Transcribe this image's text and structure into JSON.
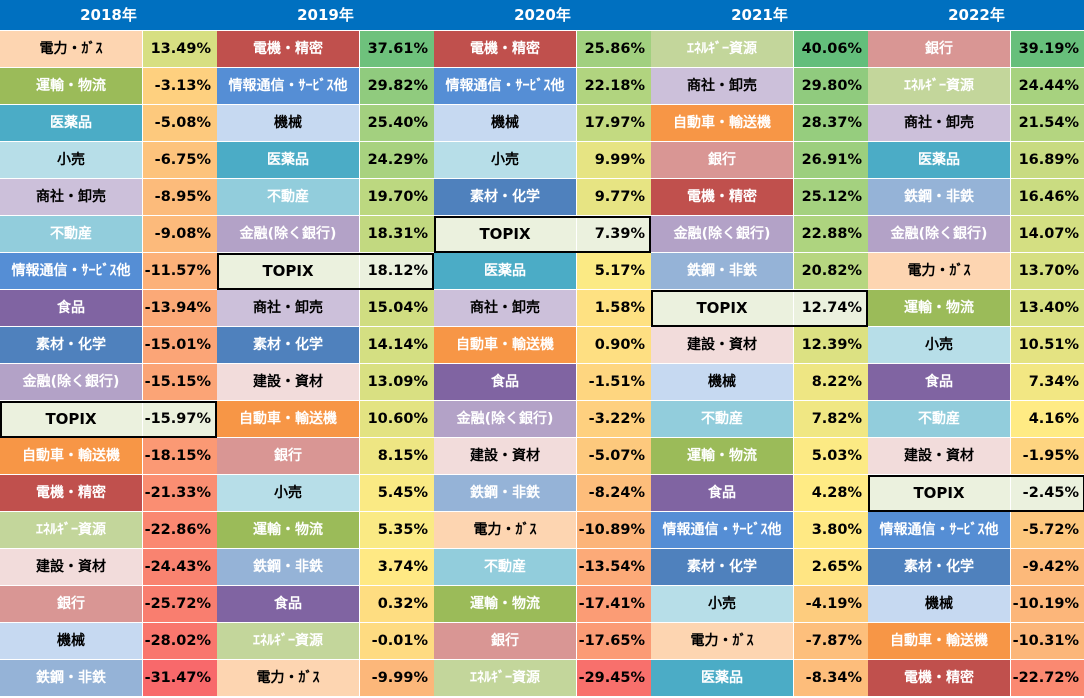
{
  "chart_data": {
    "type": "table",
    "title": "",
    "years": [
      {
        "year": "2018年",
        "rows": [
          {
            "name": "電力・ｶﾞｽ",
            "value": 13.49,
            "label": "13.49%"
          },
          {
            "name": "運輸・物流",
            "value": -3.13,
            "label": "-3.13%"
          },
          {
            "name": "医薬品",
            "value": -5.08,
            "label": "-5.08%"
          },
          {
            "name": "小売",
            "value": -6.75,
            "label": "-6.75%"
          },
          {
            "name": "商社・卸売",
            "value": -8.95,
            "label": "-8.95%"
          },
          {
            "name": "不動産",
            "value": -9.08,
            "label": "-9.08%"
          },
          {
            "name": "情報通信・ｻｰﾋﾞｽ他",
            "value": -11.57,
            "label": "-11.57%"
          },
          {
            "name": "食品",
            "value": -13.94,
            "label": "-13.94%"
          },
          {
            "name": "素材・化学",
            "value": -15.01,
            "label": "-15.01%"
          },
          {
            "name": "金融(除く銀行)",
            "value": -15.15,
            "label": "-15.15%"
          },
          {
            "name": "TOPIX",
            "value": -15.97,
            "label": "-15.97%"
          },
          {
            "name": "自動車・輸送機",
            "value": -18.15,
            "label": "-18.15%"
          },
          {
            "name": "電機・精密",
            "value": -21.33,
            "label": "-21.33%"
          },
          {
            "name": "ｴﾈﾙｷﾞｰ資源",
            "value": -22.86,
            "label": "-22.86%"
          },
          {
            "name": "建設・資材",
            "value": -24.43,
            "label": "-24.43%"
          },
          {
            "name": "銀行",
            "value": -25.72,
            "label": "-25.72%"
          },
          {
            "name": "機械",
            "value": -28.02,
            "label": "-28.02%"
          },
          {
            "name": "鉄鋼・非鉄",
            "value": -31.47,
            "label": "-31.47%"
          }
        ]
      },
      {
        "year": "2019年",
        "rows": [
          {
            "name": "電機・精密",
            "value": 37.61,
            "label": "37.61%"
          },
          {
            "name": "情報通信・ｻｰﾋﾞｽ他",
            "value": 29.82,
            "label": "29.82%"
          },
          {
            "name": "機械",
            "value": 25.4,
            "label": "25.40%"
          },
          {
            "name": "医薬品",
            "value": 24.29,
            "label": "24.29%"
          },
          {
            "name": "不動産",
            "value": 19.7,
            "label": "19.70%"
          },
          {
            "name": "金融(除く銀行)",
            "value": 18.31,
            "label": "18.31%"
          },
          {
            "name": "TOPIX",
            "value": 18.12,
            "label": "18.12%"
          },
          {
            "name": "商社・卸売",
            "value": 15.04,
            "label": "15.04%"
          },
          {
            "name": "素材・化学",
            "value": 14.14,
            "label": "14.14%"
          },
          {
            "name": "建設・資材",
            "value": 13.09,
            "label": "13.09%"
          },
          {
            "name": "自動車・輸送機",
            "value": 10.6,
            "label": "10.60%"
          },
          {
            "name": "銀行",
            "value": 8.15,
            "label": "8.15%"
          },
          {
            "name": "小売",
            "value": 5.45,
            "label": "5.45%"
          },
          {
            "name": "運輸・物流",
            "value": 5.35,
            "label": "5.35%"
          },
          {
            "name": "鉄鋼・非鉄",
            "value": 3.74,
            "label": "3.74%"
          },
          {
            "name": "食品",
            "value": 0.32,
            "label": "0.32%"
          },
          {
            "name": "ｴﾈﾙｷﾞｰ資源",
            "value": -0.01,
            "label": "-0.01%"
          },
          {
            "name": "電力・ｶﾞｽ",
            "value": -9.99,
            "label": "-9.99%"
          }
        ]
      },
      {
        "year": "2020年",
        "rows": [
          {
            "name": "電機・精密",
            "value": 25.86,
            "label": "25.86%"
          },
          {
            "name": "情報通信・ｻｰﾋﾞｽ他",
            "value": 22.18,
            "label": "22.18%"
          },
          {
            "name": "機械",
            "value": 17.97,
            "label": "17.97%"
          },
          {
            "name": "小売",
            "value": 9.99,
            "label": "9.99%"
          },
          {
            "name": "素材・化学",
            "value": 9.77,
            "label": "9.77%"
          },
          {
            "name": "TOPIX",
            "value": 7.39,
            "label": "7.39%"
          },
          {
            "name": "医薬品",
            "value": 5.17,
            "label": "5.17%"
          },
          {
            "name": "商社・卸売",
            "value": 1.58,
            "label": "1.58%"
          },
          {
            "name": "自動車・輸送機",
            "value": 0.9,
            "label": "0.90%"
          },
          {
            "name": "食品",
            "value": -1.51,
            "label": "-1.51%"
          },
          {
            "name": "金融(除く銀行)",
            "value": -3.22,
            "label": "-3.22%"
          },
          {
            "name": "建設・資材",
            "value": -5.07,
            "label": "-5.07%"
          },
          {
            "name": "鉄鋼・非鉄",
            "value": -8.24,
            "label": "-8.24%"
          },
          {
            "name": "電力・ｶﾞｽ",
            "value": -10.89,
            "label": "-10.89%"
          },
          {
            "name": "不動産",
            "value": -13.54,
            "label": "-13.54%"
          },
          {
            "name": "運輸・物流",
            "value": -17.41,
            "label": "-17.41%"
          },
          {
            "name": "銀行",
            "value": -17.65,
            "label": "-17.65%"
          },
          {
            "name": "ｴﾈﾙｷﾞｰ資源",
            "value": -29.45,
            "label": "-29.45%"
          }
        ]
      },
      {
        "year": "2021年",
        "rows": [
          {
            "name": "ｴﾈﾙｷﾞｰ資源",
            "value": 40.06,
            "label": "40.06%"
          },
          {
            "name": "商社・卸売",
            "value": 29.8,
            "label": "29.80%"
          },
          {
            "name": "自動車・輸送機",
            "value": 28.37,
            "label": "28.37%"
          },
          {
            "name": "銀行",
            "value": 26.91,
            "label": "26.91%"
          },
          {
            "name": "電機・精密",
            "value": 25.12,
            "label": "25.12%"
          },
          {
            "name": "金融(除く銀行)",
            "value": 22.88,
            "label": "22.88%"
          },
          {
            "name": "鉄鋼・非鉄",
            "value": 20.82,
            "label": "20.82%"
          },
          {
            "name": "TOPIX",
            "value": 12.74,
            "label": "12.74%"
          },
          {
            "name": "建設・資材",
            "value": 12.39,
            "label": "12.39%"
          },
          {
            "name": "機械",
            "value": 8.22,
            "label": "8.22%"
          },
          {
            "name": "不動産",
            "value": 7.82,
            "label": "7.82%"
          },
          {
            "name": "運輸・物流",
            "value": 5.03,
            "label": "5.03%"
          },
          {
            "name": "食品",
            "value": 4.28,
            "label": "4.28%"
          },
          {
            "name": "情報通信・ｻｰﾋﾞｽ他",
            "value": 3.8,
            "label": "3.80%"
          },
          {
            "name": "素材・化学",
            "value": 2.65,
            "label": "2.65%"
          },
          {
            "name": "小売",
            "value": -4.19,
            "label": "-4.19%"
          },
          {
            "name": "電力・ｶﾞｽ",
            "value": -7.87,
            "label": "-7.87%"
          },
          {
            "name": "医薬品",
            "value": -8.34,
            "label": "-8.34%"
          }
        ]
      },
      {
        "year": "2022年",
        "rows": [
          {
            "name": "銀行",
            "value": 39.19,
            "label": "39.19%"
          },
          {
            "name": "ｴﾈﾙｷﾞｰ資源",
            "value": 24.44,
            "label": "24.44%"
          },
          {
            "name": "商社・卸売",
            "value": 21.54,
            "label": "21.54%"
          },
          {
            "name": "医薬品",
            "value": 16.89,
            "label": "16.89%"
          },
          {
            "name": "鉄鋼・非鉄",
            "value": 16.46,
            "label": "16.46%"
          },
          {
            "name": "金融(除く銀行)",
            "value": 14.07,
            "label": "14.07%"
          },
          {
            "name": "電力・ｶﾞｽ",
            "value": 13.7,
            "label": "13.70%"
          },
          {
            "name": "運輸・物流",
            "value": 13.4,
            "label": "13.40%"
          },
          {
            "name": "小売",
            "value": 10.51,
            "label": "10.51%"
          },
          {
            "name": "食品",
            "value": 7.34,
            "label": "7.34%"
          },
          {
            "name": "不動産",
            "value": 4.16,
            "label": "4.16%"
          },
          {
            "name": "建設・資材",
            "value": -1.95,
            "label": "-1.95%"
          },
          {
            "name": "TOPIX",
            "value": -2.45,
            "label": "-2.45%"
          },
          {
            "name": "情報通信・ｻｰﾋﾞｽ他",
            "value": -5.72,
            "label": "-5.72%"
          },
          {
            "name": "素材・化学",
            "value": -9.42,
            "label": "-9.42%"
          },
          {
            "name": "機械",
            "value": -10.19,
            "label": "-10.19%"
          },
          {
            "name": "自動車・輸送機",
            "value": -10.31,
            "label": "-10.31%"
          },
          {
            "name": "電機・精密",
            "value": -22.72,
            "label": "-22.72%"
          }
        ]
      }
    ]
  },
  "sector_colors": {
    "電力・ｶﾞｽ": {
      "bg": "#fdd5b1",
      "fg": "#000000"
    },
    "運輸・物流": {
      "bg": "#9bbb59",
      "fg": "#ffffff"
    },
    "医薬品": {
      "bg": "#4bacc6",
      "fg": "#ffffff"
    },
    "小売": {
      "bg": "#b7dee8",
      "fg": "#000000"
    },
    "商社・卸売": {
      "bg": "#ccc0da",
      "fg": "#000000"
    },
    "不動産": {
      "bg": "#92cddc",
      "fg": "#ffffff"
    },
    "情報通信・ｻｰﾋﾞｽ他": {
      "bg": "#558ed5",
      "fg": "#ffffff"
    },
    "食品": {
      "bg": "#8064a2",
      "fg": "#ffffff"
    },
    "素材・化学": {
      "bg": "#4f81bd",
      "fg": "#ffffff"
    },
    "金融(除く銀行)": {
      "bg": "#b3a2c7",
      "fg": "#ffffff"
    },
    "TOPIX": {
      "bg": "#ebf1de",
      "fg": "#000000"
    },
    "自動車・輸送機": {
      "bg": "#f79646",
      "fg": "#ffffff"
    },
    "電機・精密": {
      "bg": "#c0504d",
      "fg": "#ffffff"
    },
    "ｴﾈﾙｷﾞｰ資源": {
      "bg": "#c3d69b",
      "fg": "#ffffff"
    },
    "建設・資材": {
      "bg": "#f2dcdb",
      "fg": "#000000"
    },
    "銀行": {
      "bg": "#d99694",
      "fg": "#ffffff"
    },
    "機械": {
      "bg": "#c6d9f1",
      "fg": "#000000"
    },
    "鉄鋼・非鉄": {
      "bg": "#95b3d7",
      "fg": "#ffffff"
    }
  },
  "value_scale_colors": {
    "high": "#63be7b",
    "mid": "#ffeb84",
    "low": "#f8696b",
    "header": "#0070c0"
  }
}
